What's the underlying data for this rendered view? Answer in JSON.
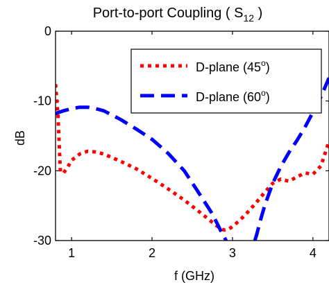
{
  "chart_data": {
    "type": "line",
    "title": "Port-to-port Coupling ( S",
    "title_subscript": "12",
    "title_end": " )",
    "xlabel": "f (GHz)",
    "ylabel": "dB",
    "xlim": [
      0.8,
      4.2
    ],
    "ylim": [
      -30,
      0
    ],
    "x_ticks": [
      1,
      2,
      3,
      4
    ],
    "y_ticks": [
      0,
      -10,
      -20,
      -30
    ],
    "grid": false,
    "legend_position": "top-right",
    "series": [
      {
        "name": "D-plane (45",
        "name_superscript": "o",
        "name_end": ")",
        "color": "#ff0000",
        "dash": "dotted",
        "x": [
          0.8,
          0.83,
          0.86,
          0.9,
          0.95,
          1.0,
          1.1,
          1.2,
          1.3,
          1.4,
          1.6,
          1.8,
          2.0,
          2.2,
          2.4,
          2.6,
          2.75,
          2.85,
          2.9,
          2.95,
          3.0,
          3.1,
          3.2,
          3.3,
          3.4,
          3.5,
          3.6,
          3.7,
          3.8,
          3.9,
          4.0,
          4.1,
          4.2
        ],
        "y": [
          -7.6,
          -12,
          -20.2,
          -20.3,
          -19.5,
          -18.5,
          -17.6,
          -17.2,
          -17.3,
          -17.6,
          -18.6,
          -19.7,
          -21.1,
          -22.6,
          -24.2,
          -26.0,
          -27.4,
          -28.3,
          -28.5,
          -28.4,
          -28.0,
          -27.0,
          -25.8,
          -24.5,
          -23.1,
          -21.8,
          -21.2,
          -21.5,
          -20.9,
          -20.3,
          -20.5,
          -19.3,
          -15.8
        ]
      },
      {
        "name": "D-plane (60",
        "name_superscript": "o",
        "name_end": ")",
        "color": "#0000ff",
        "dash": "dashed",
        "x": [
          0.8,
          0.85,
          0.9,
          1.0,
          1.1,
          1.2,
          1.3,
          1.4,
          1.6,
          1.8,
          2.0,
          2.2,
          2.4,
          2.6,
          2.75,
          2.85,
          2.92,
          2.96,
          3.0,
          3.25,
          3.3,
          3.35,
          3.4,
          3.5,
          3.6,
          3.7,
          3.8,
          3.9,
          4.0,
          4.1,
          4.2
        ],
        "y": [
          -11.8,
          -11.6,
          -11.4,
          -11.1,
          -10.9,
          -10.9,
          -11.1,
          -11.4,
          -12.6,
          -14.0,
          -15.5,
          -17.5,
          -20.0,
          -23.5,
          -26.2,
          -28.5,
          -30.0,
          -31.0,
          -31.0,
          -31.0,
          -29.2,
          -27.0,
          -25.0,
          -21.8,
          -19.4,
          -17.4,
          -15.7,
          -13.8,
          -11.6,
          -9.4,
          -6.7
        ]
      }
    ]
  }
}
